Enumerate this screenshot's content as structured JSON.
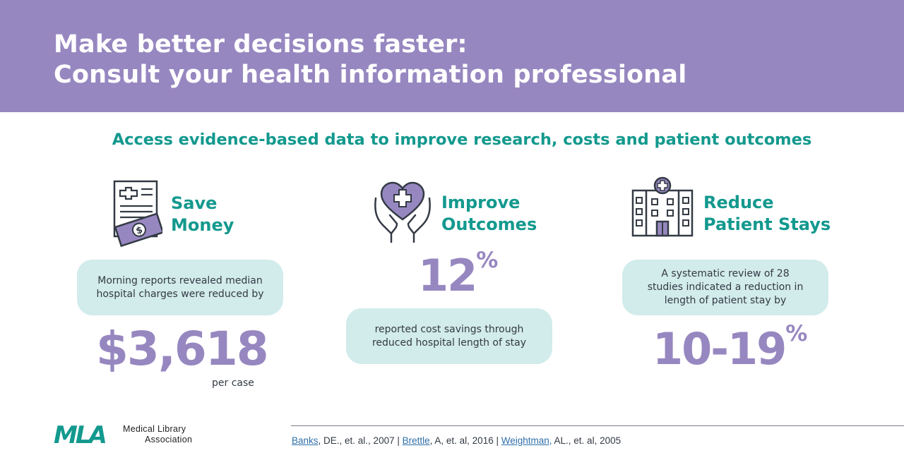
{
  "banner": {
    "title_line1": "Make better decisions faster:",
    "title_line2": "Consult your health information professional"
  },
  "subtitle": "Access evidence-based data to improve research, costs and patient outcomes",
  "columns": [
    {
      "icon": "money-document-icon",
      "title_line1": "Save",
      "title_line2": "Money",
      "text": "Morning reports revealed median hospital charges were reduced by",
      "stat": "$3,618",
      "stat_suffix": "per case"
    },
    {
      "icon": "heart-hands-icon",
      "title_line1": "Improve",
      "title_line2": "Outcomes",
      "stat": "12",
      "stat_unit": "%",
      "text": "reported cost savings through reduced hospital length of stay"
    },
    {
      "icon": "hospital-icon",
      "title_line1": "Reduce",
      "title_line2": "Patient Stays",
      "text": "A systematic review of 28 studies indicated a reduction in length of patient stay by",
      "stat": "10-19",
      "stat_unit": "%"
    }
  ],
  "logo": {
    "letters": "MLA",
    "name_line1": "Medical Library",
    "name_line2": "Association"
  },
  "citations": [
    {
      "link": "Banks",
      "rest": ", DE., et. al., 2007"
    },
    {
      "link": "Brettle",
      "rest": ", A, et. al, 2016"
    },
    {
      "link": "Weightman,",
      "rest": " AL., et. al, 2005"
    }
  ],
  "citation_separator": " | ",
  "colors": {
    "banner": "#9787c0",
    "teal": "#13998e",
    "bubble": "#d2ebeb",
    "purple_stat": "#9787c0",
    "link": "#2f6fa8"
  }
}
